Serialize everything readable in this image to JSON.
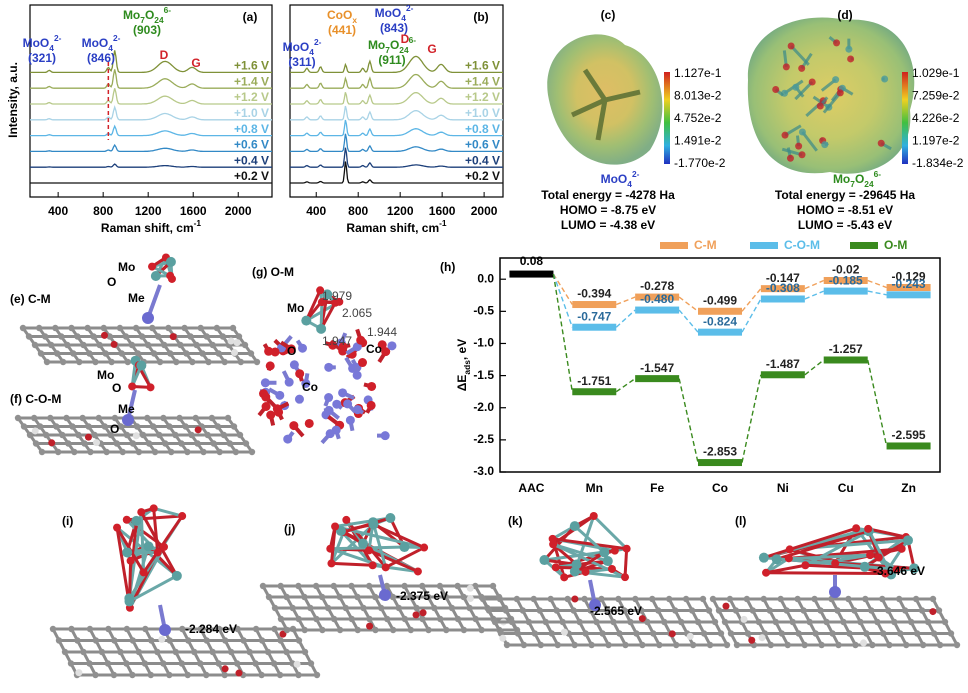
{
  "spectra": {
    "ylabel": "Intensity, a.u.",
    "panels": [
      {
        "label": "(a)",
        "xlabel": [
          {
            "text": "Raman shift, cm"
          },
          {
            "text": "-1",
            "pos": "sup"
          }
        ],
        "xlim": [
          150,
          2300
        ],
        "xticks": [
          400,
          800,
          1200,
          1600,
          2000
        ],
        "voltages": [
          "+1.6 V",
          "+1.4 V",
          "+1.2 V",
          "+1.0 V",
          "+0.8 V",
          "+0.6 V",
          "+0.4 V",
          "+0.2 V"
        ],
        "colors": [
          "#7f9138",
          "#9aac5a",
          "#b8c98a",
          "#a9d3e6",
          "#5cb6e6",
          "#3289c6",
          "#1c3f7a",
          "#111111"
        ],
        "peaks": [
          {
            "name": [
              {
                "text": "MoO"
              },
              {
                "text": "4",
                "pos": "sub"
              },
              {
                "text": "2-",
                "pos": "sup"
              }
            ],
            "value": 321,
            "label": "(321)",
            "color": "#2b3fc4"
          },
          {
            "name": [
              {
                "text": "MoO"
              },
              {
                "text": "4",
                "pos": "sub"
              },
              {
                "text": "2-",
                "pos": "sup"
              }
            ],
            "value": 846,
            "label": "(846)",
            "color": "#2b3fc4"
          },
          {
            "name": [
              {
                "text": "Mo"
              },
              {
                "text": "7",
                "pos": "sub"
              },
              {
                "text": "O"
              },
              {
                "text": "24",
                "pos": "sub"
              },
              {
                "text": "6-",
                "pos": "sup"
              }
            ],
            "value": 903,
            "label": "(903)",
            "color": "#2e8b1e"
          }
        ],
        "bands": [
          "D",
          "G"
        ],
        "band_color": "#d2232a"
      },
      {
        "label": "(b)",
        "xlabel": [
          {
            "text": "Raman shift, cm"
          },
          {
            "text": "-1",
            "pos": "sup"
          }
        ],
        "xlim": [
          150,
          2180
        ],
        "xticks": [
          400,
          800,
          1200,
          1600,
          2000
        ],
        "voltages": [
          "+1.6 V",
          "+1.4 V",
          "+1.2 V",
          "+1.0 V",
          "+0.8 V",
          "+0.6 V",
          "+0.4 V",
          "+0.2 V"
        ],
        "colors": [
          "#7f9138",
          "#9aac5a",
          "#b8c98a",
          "#a9d3e6",
          "#5cb6e6",
          "#3289c6",
          "#1c3f7a",
          "#111111"
        ],
        "peaks": [
          {
            "name": [
              {
                "text": "MoO"
              },
              {
                "text": "4",
                "pos": "sub"
              },
              {
                "text": "2-",
                "pos": "sup"
              }
            ],
            "value": 311,
            "label": "(311)",
            "color": "#2b3fc4"
          },
          {
            "name": [
              {
                "text": "CoO"
              },
              {
                "text": "x",
                "pos": "sub"
              }
            ],
            "value": 441,
            "label": "(441)",
            "color": "#e8902a"
          },
          {
            "name": [
              {
                "text": "MoO"
              },
              {
                "text": "4",
                "pos": "sub"
              },
              {
                "text": "2-",
                "pos": "sup"
              }
            ],
            "value": 843,
            "label": "(843)",
            "color": "#2b3fc4"
          },
          {
            "name": [
              {
                "text": "Mo"
              },
              {
                "text": "7",
                "pos": "sub"
              },
              {
                "text": "O"
              },
              {
                "text": "24",
                "pos": "sub"
              },
              {
                "text": "6-",
                "pos": "sup"
              }
            ],
            "value": 911,
            "label": "(911)",
            "color": "#2e8b1e"
          }
        ],
        "bands": [
          "D",
          "G"
        ],
        "band_color": "#d2232a"
      }
    ]
  },
  "molecules": [
    {
      "label": "(c)",
      "formula": [
        {
          "text": "MoO"
        },
        {
          "text": "4",
          "pos": "sub"
        },
        {
          "text": "2-",
          "pos": "sup"
        }
      ],
      "formula_color": "#2b3fc4",
      "lines": [
        "Total energy = -4278 Ha",
        "HOMO = -8.75 eV",
        "LUMO = -4.38 eV"
      ],
      "colorbar": [
        "1.127e-1",
        "8.013e-2",
        "4.752e-2",
        "1.491e-2",
        "-1.770e-2"
      ]
    },
    {
      "label": "(d)",
      "formula": [
        {
          "text": "Mo"
        },
        {
          "text": "7",
          "pos": "sub"
        },
        {
          "text": "O"
        },
        {
          "text": "24",
          "pos": "sub"
        },
        {
          "text": "6-",
          "pos": "sup"
        }
      ],
      "formula_color": "#2e8b1e",
      "lines": [
        "Total energy = -29645 Ha",
        "HOMO = -8.51 eV",
        "LUMO = -5.43 eV"
      ],
      "colorbar": [
        "1.029e-1",
        "7.259e-2",
        "4.226e-2",
        "1.197e-2",
        "-1.834e-2"
      ]
    }
  ],
  "structures": [
    {
      "label": "(e) C-M",
      "atoms": [
        "Mo",
        "O",
        "Me"
      ]
    },
    {
      "label": "(f) C-O-M",
      "atoms": [
        "Mo",
        "O",
        "Me",
        "O"
      ]
    },
    {
      "label": "(g) O-M",
      "atoms": [
        "Mo",
        "O",
        "Co",
        "Co",
        "1.979",
        "2.065",
        "1.944",
        "1.947"
      ]
    }
  ],
  "configurations": [
    {
      "label": "(i)",
      "energy": "-2.284 eV"
    },
    {
      "label": "(j)",
      "energy": "-2.375 eV"
    },
    {
      "label": "(k)",
      "energy": "-2.565 eV"
    },
    {
      "label": "(l)",
      "energy": "-3.646 eV"
    }
  ],
  "chart_data": {
    "type": "energy_levels",
    "label": "(h)",
    "ylabel": [
      {
        "text": "ΔE"
      },
      {
        "text": "ads",
        "pos": "sub"
      },
      {
        "text": ", eV"
      }
    ],
    "categories": [
      "AAC",
      "Mn",
      "Fe",
      "Co",
      "Ni",
      "Cu",
      "Zn"
    ],
    "reference_value": 0.08,
    "reference_color": "#000000",
    "series": [
      {
        "name": "C-M",
        "color": "#f0a05a",
        "values": [
          null,
          -0.394,
          -0.278,
          -0.499,
          -0.147,
          -0.02,
          -0.129
        ]
      },
      {
        "name": "C-O-M",
        "color": "#5bbde9",
        "values": [
          null,
          -0.747,
          -0.48,
          -0.824,
          -0.308,
          -0.185,
          -0.243
        ],
        "value_labels": [
          null,
          "-0.747",
          "-0.480",
          "-0.824",
          "-0.308",
          "-0.185",
          "-0.243"
        ]
      },
      {
        "name": "O-M",
        "color": "#3a8a1e",
        "values": [
          null,
          -1.751,
          -1.547,
          -2.853,
          -1.487,
          -1.257,
          -2.595
        ]
      }
    ],
    "ylim": [
      -3.0,
      0.33
    ],
    "yticks": [
      {
        "value": 0,
        "label": "0.0"
      },
      {
        "value": -0.5,
        "label": "-0.5"
      },
      {
        "value": -1,
        "label": "-1.0"
      },
      {
        "value": -1.5,
        "label": "-1.5"
      },
      {
        "value": -2,
        "label": "-2.0"
      },
      {
        "value": -2.5,
        "label": "-2.5"
      },
      {
        "value": -3,
        "label": "-3.0"
      }
    ]
  }
}
